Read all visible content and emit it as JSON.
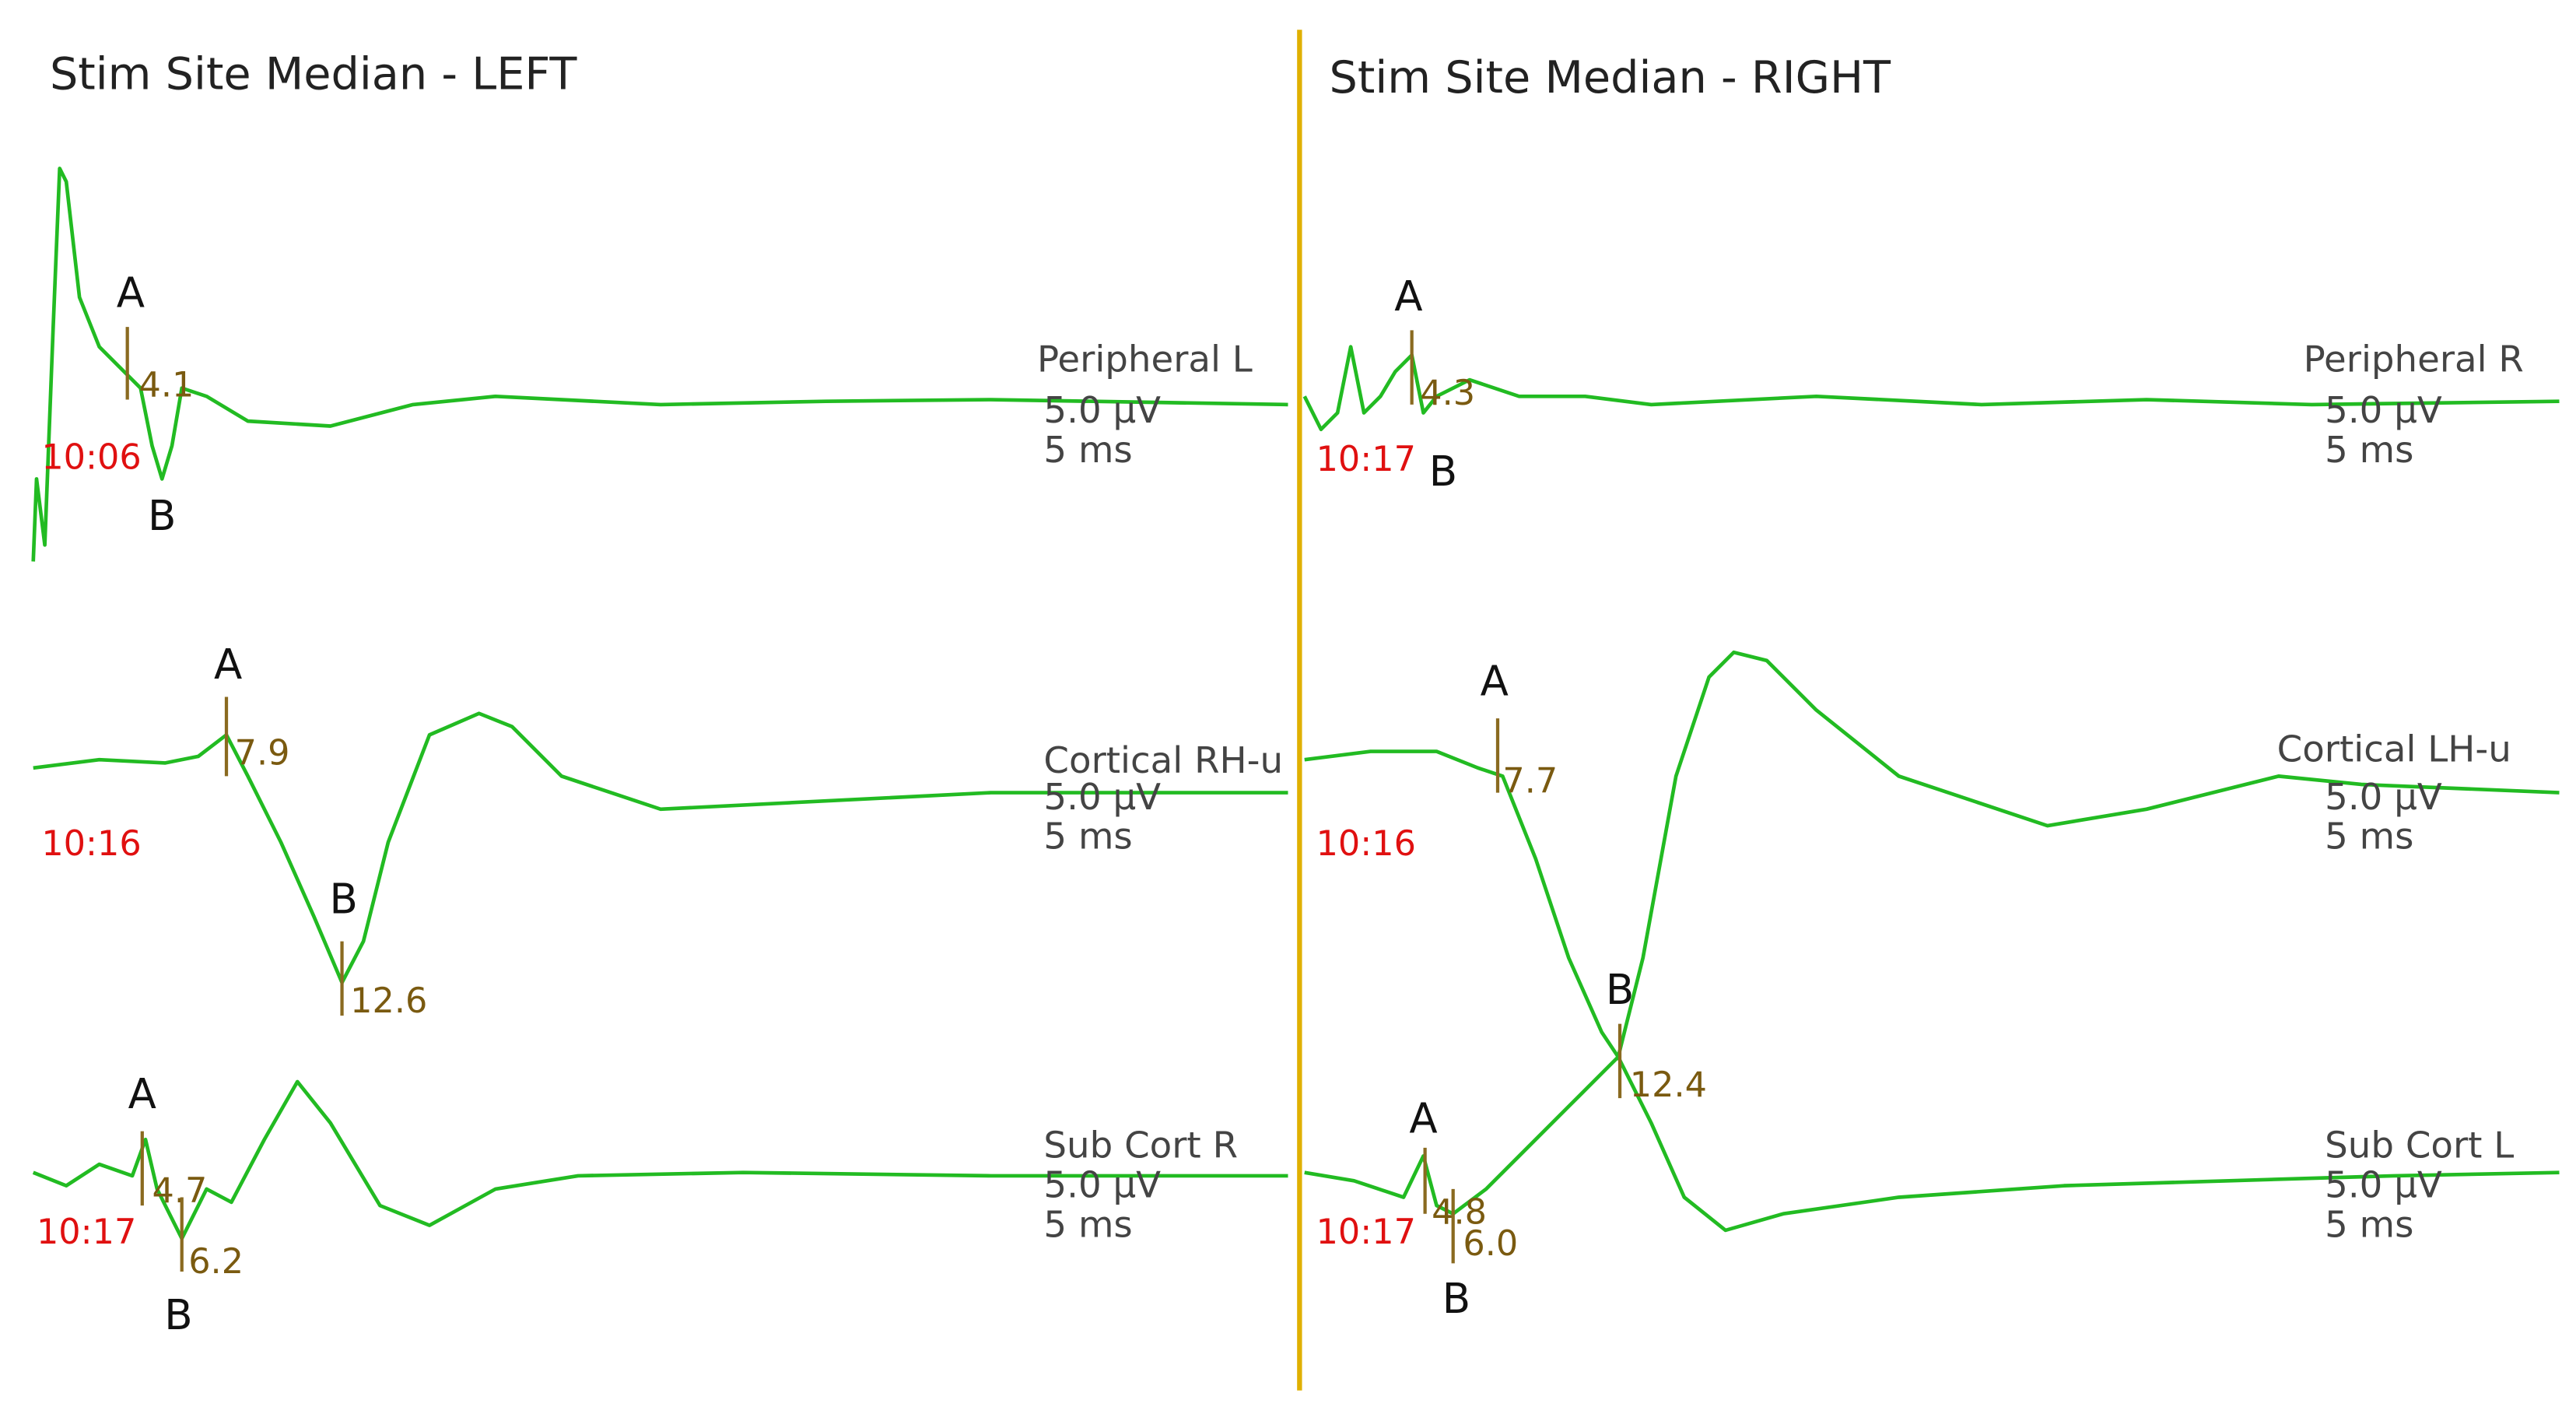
{
  "panels": [
    {
      "title": "Stim Site Median  -  LEFT",
      "traces": [
        {
          "label": "Peripheral  L",
          "sensitivity": "5.0 µV",
          "sweep": "5 ms",
          "time": "10:06",
          "markers": [
            {
              "name": "A",
              "latency": "4.1"
            },
            {
              "name": "B"
            }
          ]
        },
        {
          "label": "Cortical RH-u",
          "sensitivity": "5.0 µV",
          "sweep": "5 ms",
          "time": "10:16",
          "markers": [
            {
              "name": "A",
              "latency": "7.9"
            },
            {
              "name": "B",
              "latency": "12.6"
            }
          ]
        },
        {
          "label": "Sub Cort R",
          "sensitivity": "5.0 µV",
          "sweep": "5 ms",
          "time": "10:17",
          "markers": [
            {
              "name": "A",
              "latency": "4.7"
            },
            {
              "name": "B",
              "latency": "6.2"
            }
          ]
        }
      ]
    },
    {
      "title": "Stim Site Median  -  RIGHT",
      "traces": [
        {
          "label": "Peripheral  R",
          "sensitivity": "5.0 µV",
          "sweep": "5 ms",
          "time": "10:17",
          "markers": [
            {
              "name": "A",
              "latency": "4.3"
            },
            {
              "name": "B"
            }
          ]
        },
        {
          "label": "Cortical  LH-u",
          "sensitivity": "5.0 µV",
          "sweep": "5 ms",
          "time": "10:16",
          "markers": [
            {
              "name": "A",
              "latency": "7.7"
            },
            {
              "name": "B",
              "latency": "12.4"
            }
          ]
        },
        {
          "label": "Sub Cort L",
          "sensitivity": "5.0 µV",
          "sweep": "5 ms",
          "time": "10:17",
          "markers": [
            {
              "name": "A",
              "latency": "4.8"
            },
            {
              "name": "B",
              "latency": "6.0"
            }
          ]
        }
      ]
    }
  ]
}
